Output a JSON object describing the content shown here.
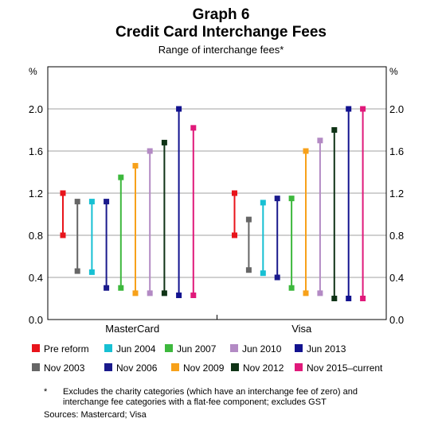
{
  "chart_data": {
    "type": "range",
    "title": "Graph 6",
    "subtitle": "Credit Card Interchange Fees",
    "caption": "Range of interchange fees*",
    "y_unit_label": "%",
    "ylim": [
      0,
      2.4
    ],
    "y_ticks": [
      "0.0",
      "0.4",
      "0.8",
      "1.2",
      "1.6",
      "2.0"
    ],
    "y_tick_values": [
      0,
      0.4,
      0.8,
      1.2,
      1.6,
      2.0
    ],
    "grid": true,
    "categories": [
      "MasterCard",
      "Visa"
    ],
    "series": [
      {
        "name": "Pre reform",
        "color": "#e8141b",
        "values": [
          [
            0.8,
            1.2
          ],
          [
            0.8,
            1.2
          ]
        ]
      },
      {
        "name": "Nov 2003",
        "color": "#666666",
        "values": [
          [
            0.46,
            1.12
          ],
          [
            0.47,
            0.95
          ]
        ]
      },
      {
        "name": "Jun 2004",
        "color": "#17c0d3",
        "values": [
          [
            0.45,
            1.12
          ],
          [
            0.44,
            1.11
          ]
        ]
      },
      {
        "name": "Nov 2006",
        "color": "#1a1a8c",
        "values": [
          [
            0.3,
            1.12
          ],
          [
            0.4,
            1.15
          ]
        ]
      },
      {
        "name": "Jun 2007",
        "color": "#3db83d",
        "values": [
          [
            0.3,
            1.35
          ],
          [
            0.3,
            1.15
          ]
        ]
      },
      {
        "name": "Nov 2009",
        "color": "#f7a11a",
        "values": [
          [
            0.25,
            1.46
          ],
          [
            0.25,
            1.6
          ]
        ]
      },
      {
        "name": "Jun 2010",
        "color": "#b38ac4",
        "values": [
          [
            0.25,
            1.6
          ],
          [
            0.25,
            1.7
          ]
        ]
      },
      {
        "name": "Nov 2012",
        "color": "#0f3316",
        "values": [
          [
            0.25,
            1.68
          ],
          [
            0.2,
            1.8
          ]
        ]
      },
      {
        "name": "Jun 2013",
        "color": "#12128f",
        "values": [
          [
            0.23,
            2.0
          ],
          [
            0.2,
            2.0
          ]
        ]
      },
      {
        "name": "Nov 2015–current",
        "color": "#e0197a",
        "values": [
          [
            0.23,
            1.82
          ],
          [
            0.2,
            2.0
          ]
        ]
      }
    ],
    "legend_placement": "bottom",
    "footnote_marker": "*",
    "footnote": "Excludes the charity categories (which have an interchange fee of zero) and interchange fee categories with a flat-fee component; excludes GST",
    "sources": "Sources:   Mastercard; Visa"
  }
}
